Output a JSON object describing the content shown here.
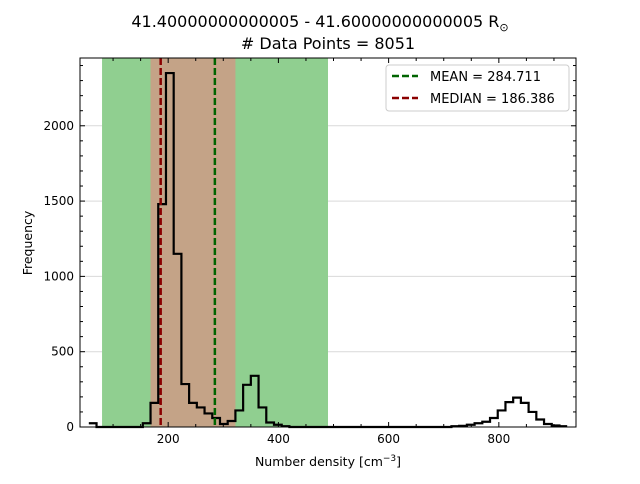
{
  "chart_data": {
    "type": "histogram",
    "title_line1": "41.40000000000005 - 41.60000000000005 R",
    "title_sun_symbol": "⊙",
    "title_line2": "# Data Points = 8051",
    "xlabel_text": "Number density [cm",
    "xlabel_sup": "−3",
    "xlabel_close": "]",
    "ylabel": "Frequency",
    "xlim": [
      40,
      940
    ],
    "ylim": [
      0,
      2450
    ],
    "xticks": [
      200,
      400,
      600,
      800
    ],
    "yticks": [
      0,
      500,
      1000,
      1500,
      2000
    ],
    "grid": "horizontal",
    "legend_position": "top-right",
    "bin_width": 14,
    "bin_start": 56,
    "counts": [
      25,
      0,
      0,
      0,
      0,
      0,
      0,
      25,
      160,
      1480,
      2350,
      1150,
      285,
      160,
      130,
      90,
      60,
      20,
      40,
      110,
      280,
      340,
      130,
      30,
      15,
      5,
      0,
      0,
      0,
      0,
      0,
      0,
      0,
      0,
      0,
      0,
      0,
      0,
      0,
      0,
      0,
      0,
      0,
      0,
      0,
      0,
      0,
      5,
      8,
      15,
      25,
      35,
      60,
      110,
      165,
      195,
      160,
      100,
      50,
      20,
      10,
      5
    ],
    "shaded_ranges": [
      {
        "name": "outer-range",
        "from": 80,
        "to": 490,
        "color": "#90cf90"
      },
      {
        "name": "inner-range",
        "from": 168,
        "to": 322,
        "color": "#c4a387"
      }
    ],
    "series": [
      {
        "name": "MEAN = 284.711",
        "value": 284.711,
        "color": "#006400",
        "style": "dashed"
      },
      {
        "name": "MEDIAN = 186.386",
        "value": 186.386,
        "color": "#8b0000",
        "style": "dashed"
      }
    ],
    "histogram_color": "#000000"
  }
}
